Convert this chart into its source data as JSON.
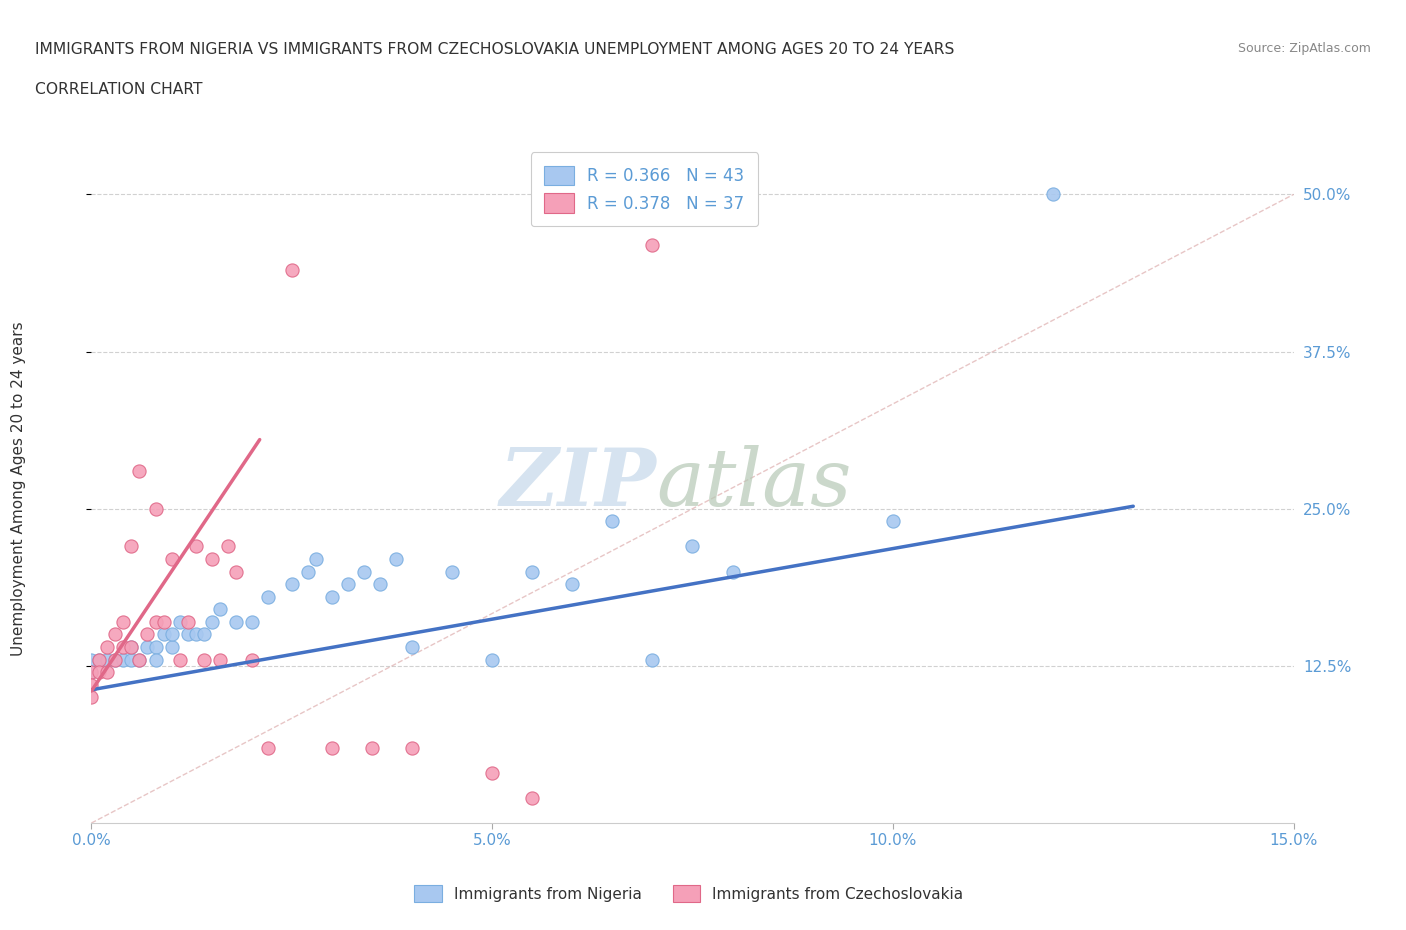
{
  "title_line1": "IMMIGRANTS FROM NIGERIA VS IMMIGRANTS FROM CZECHOSLOVAKIA UNEMPLOYMENT AMONG AGES 20 TO 24 YEARS",
  "title_line2": "CORRELATION CHART",
  "source": "Source: ZipAtlas.com",
  "ylabel": "Unemployment Among Ages 20 to 24 years",
  "xlim": [
    0.0,
    0.15
  ],
  "ylim": [
    0.0,
    0.54
  ],
  "xticks": [
    0.0,
    0.05,
    0.1,
    0.15
  ],
  "xticklabels": [
    "0.0%",
    "5.0%",
    "10.0%",
    "15.0%"
  ],
  "yticks": [
    0.125,
    0.25,
    0.375,
    0.5
  ],
  "yticklabels": [
    "12.5%",
    "25.0%",
    "37.5%",
    "50.0%"
  ],
  "nigeria_color": "#a8c8f0",
  "nigeria_edge": "#7aaee0",
  "czechoslovakia_color": "#f5a0b8",
  "czechoslovakia_edge": "#e06888",
  "nigeria_R": 0.366,
  "nigeria_N": 43,
  "czechoslovakia_R": 0.378,
  "czechoslovakia_N": 37,
  "nigeria_scatter_x": [
    0.0,
    0.0,
    0.001,
    0.002,
    0.003,
    0.004,
    0.005,
    0.005,
    0.006,
    0.007,
    0.008,
    0.008,
    0.009,
    0.01,
    0.01,
    0.011,
    0.012,
    0.013,
    0.014,
    0.015,
    0.016,
    0.018,
    0.02,
    0.022,
    0.025,
    0.027,
    0.028,
    0.03,
    0.032,
    0.034,
    0.036,
    0.038,
    0.04,
    0.045,
    0.05,
    0.055,
    0.06,
    0.065,
    0.07,
    0.075,
    0.08,
    0.1,
    0.12
  ],
  "nigeria_scatter_y": [
    0.13,
    0.12,
    0.13,
    0.13,
    0.13,
    0.13,
    0.13,
    0.14,
    0.13,
    0.14,
    0.14,
    0.13,
    0.15,
    0.14,
    0.15,
    0.16,
    0.15,
    0.15,
    0.15,
    0.16,
    0.17,
    0.16,
    0.16,
    0.18,
    0.19,
    0.2,
    0.21,
    0.18,
    0.19,
    0.2,
    0.19,
    0.21,
    0.14,
    0.2,
    0.13,
    0.2,
    0.19,
    0.24,
    0.13,
    0.22,
    0.2,
    0.24,
    0.5
  ],
  "czechoslovakia_scatter_x": [
    0.0,
    0.0,
    0.0,
    0.001,
    0.001,
    0.002,
    0.002,
    0.003,
    0.003,
    0.004,
    0.004,
    0.005,
    0.005,
    0.006,
    0.006,
    0.007,
    0.008,
    0.008,
    0.009,
    0.01,
    0.011,
    0.012,
    0.013,
    0.014,
    0.015,
    0.016,
    0.017,
    0.018,
    0.02,
    0.022,
    0.025,
    0.03,
    0.035,
    0.04,
    0.05,
    0.055,
    0.07
  ],
  "czechoslovakia_scatter_y": [
    0.12,
    0.11,
    0.1,
    0.13,
    0.12,
    0.14,
    0.12,
    0.15,
    0.13,
    0.16,
    0.14,
    0.22,
    0.14,
    0.28,
    0.13,
    0.15,
    0.25,
    0.16,
    0.16,
    0.21,
    0.13,
    0.16,
    0.22,
    0.13,
    0.21,
    0.13,
    0.22,
    0.2,
    0.13,
    0.06,
    0.44,
    0.06,
    0.06,
    0.06,
    0.04,
    0.02,
    0.46
  ],
  "nigeria_line_x": [
    0.0,
    0.13
  ],
  "nigeria_line_y": [
    0.106,
    0.252
  ],
  "czechoslovakia_line_x": [
    0.0,
    0.021
  ],
  "czechoslovakia_line_y": [
    0.105,
    0.305
  ],
  "diagonal_line_x": [
    0.0,
    0.15
  ],
  "diagonal_line_y": [
    0.0,
    0.5
  ],
  "grid_color": "#cccccc",
  "title_color": "#333333",
  "axis_label_color": "#333333",
  "tick_label_color": "#5b9bd5",
  "background_color": "#ffffff"
}
